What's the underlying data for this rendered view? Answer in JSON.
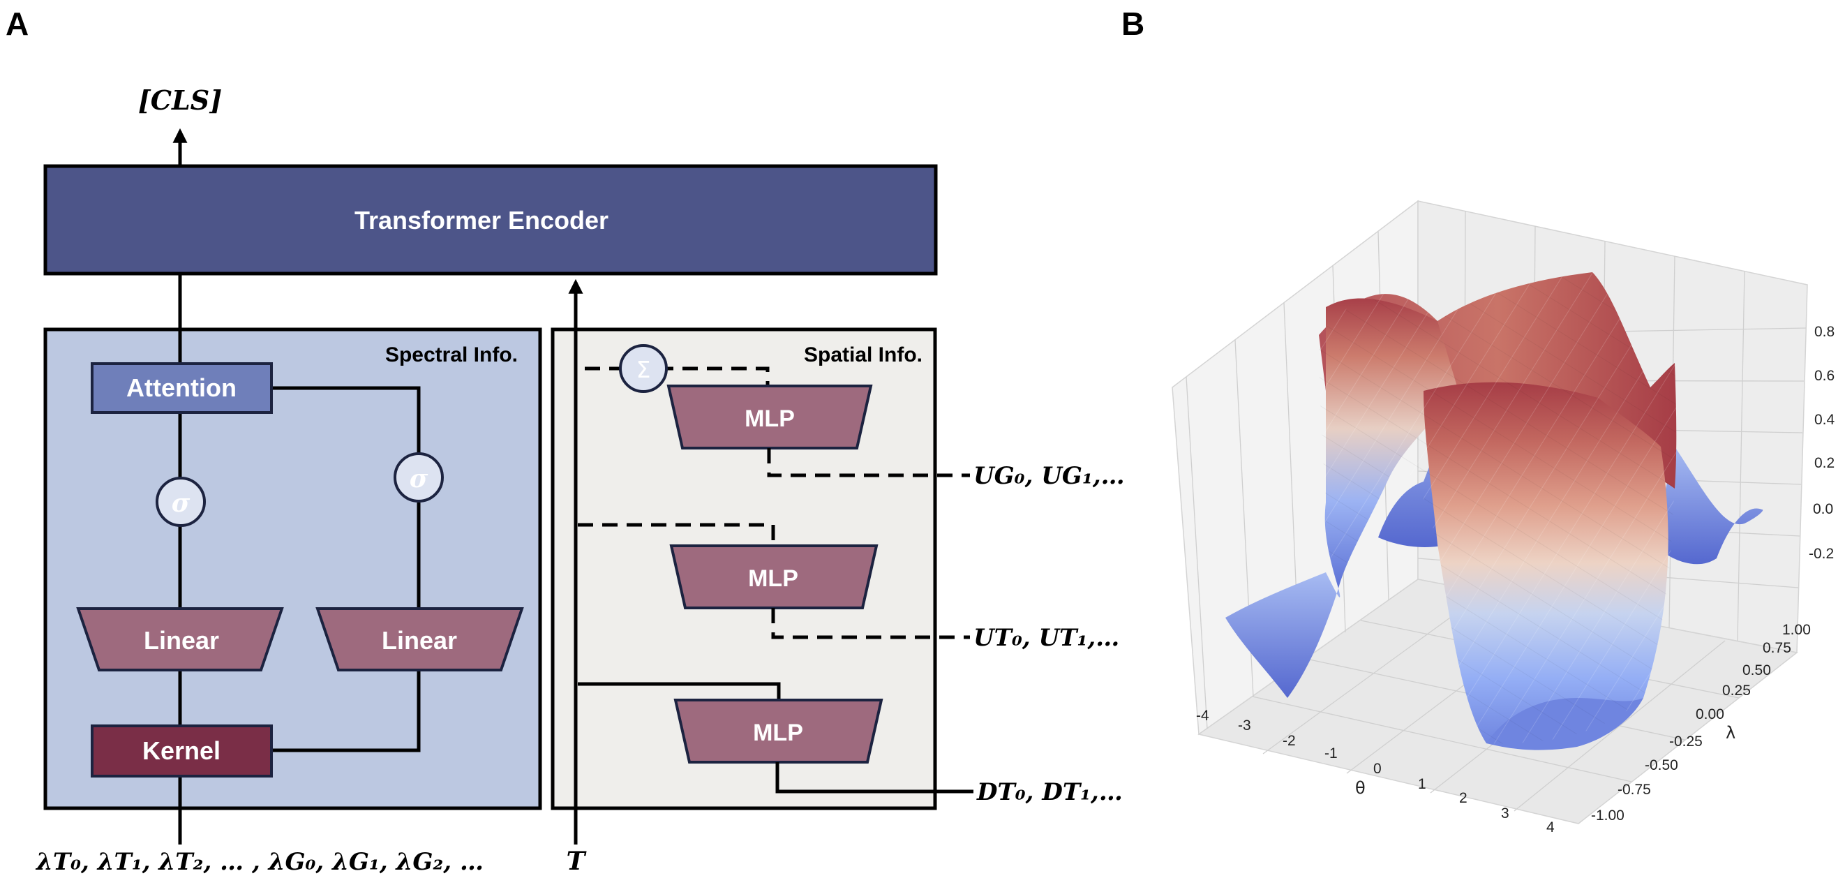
{
  "panel_a": {
    "letter": "A",
    "cls_token": "[CLS]",
    "transformer_label": "Transformer Encoder",
    "spectral_title": "Spectral Info.",
    "spatial_title": "Spatial Info.",
    "attention_label": "Attention",
    "sigma_symbol": "σ",
    "sum_symbol": "Σ",
    "linear_label": "Linear",
    "kernel_label": "Kernel",
    "mlp_label": "MLP",
    "input_eigen": "λT₀, λT₁, λT₂, … , λG₀, λG₁, λG₂, …",
    "input_t": "T",
    "output_ug": "UG₀, UG₁,…",
    "output_ut": "UT₀, UT₁,…",
    "output_dt": "DT₀, DT₁,…",
    "colors": {
      "transformer": "#4d5589",
      "attention": "#6f7fba",
      "trapezoid": "#9e6a7e",
      "kernel": "#7a2e47",
      "spectral_bg": "#bcc8e1",
      "spatial_bg": "#efeeeb",
      "sigma_fill": "#dde3f1",
      "outline": "#1c2340"
    }
  },
  "panel_b": {
    "letter": "B",
    "z_ticks": [
      "0.8",
      "0.6",
      "0.4",
      "0.2",
      "0.0",
      "-0.2"
    ],
    "lambda_ticks": [
      "1.00",
      "0.75",
      "0.50",
      "0.25",
      "0.00",
      "-0.25",
      "-0.50",
      "-0.75",
      "-1.00"
    ],
    "theta_ticks": [
      "-4",
      "-3",
      "-2",
      "-1",
      "0",
      "1",
      "2",
      "3",
      "4"
    ],
    "theta_label": "θ",
    "lambda_label": "λ",
    "colormap": [
      "#3b4cc0",
      "#6788ee",
      "#9abbff",
      "#c9d7f0",
      "#edd1c2",
      "#f7a889",
      "#e26952",
      "#b40426"
    ]
  }
}
